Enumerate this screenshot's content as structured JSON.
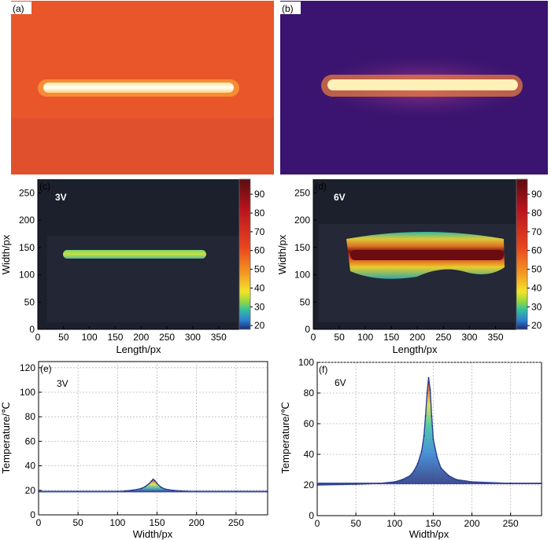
{
  "figure": {
    "panels": {
      "a": {
        "label": "(a)",
        "colormap": "orange-thermal"
      },
      "b": {
        "label": "(b)",
        "colormap": "inferno-thermal"
      },
      "c": {
        "label": "(c)",
        "voltage": "3V"
      },
      "d": {
        "label": "(d)",
        "voltage": "6V"
      },
      "e": {
        "label": "(e)",
        "voltage": "3V"
      },
      "f": {
        "label": "(f)",
        "voltage": "6V"
      }
    },
    "colors": {
      "background": "#ffffff",
      "thermal_a_background": "#e8562a",
      "thermal_b_background": "#3a1470",
      "heatmap_background": "#1c1f2c",
      "grid": "#b8b8b8",
      "colorbar": [
        "#1e2a78",
        "#2b7fd0",
        "#33c0a0",
        "#9bd83a",
        "#f2e52a",
        "#f59a22",
        "#e8441e",
        "#b8141e",
        "#5a0c10"
      ]
    }
  },
  "chart_data": [
    {
      "type": "heatmap",
      "panel": "c",
      "annotation": "3V",
      "xlabel": "Length/px",
      "ylabel": "Width/px",
      "xlim": [
        0,
        390
      ],
      "ylim": [
        0,
        275
      ],
      "xticks": [
        0,
        50,
        100,
        150,
        200,
        250,
        300,
        350
      ],
      "yticks": [
        0,
        50,
        100,
        150,
        200,
        250
      ],
      "colorbar": {
        "range": [
          18,
          98
        ],
        "ticks": [
          20,
          30,
          40,
          50,
          60,
          70,
          80,
          90
        ]
      },
      "hot_region": {
        "x_range": [
          50,
          320
        ],
        "width_center": 145,
        "width_span": [
          137,
          152
        ],
        "max_temperature": 40
      }
    },
    {
      "type": "heatmap",
      "panel": "d",
      "annotation": "6V",
      "xlabel": "Length/px",
      "ylabel": "Width/px",
      "xlim": [
        0,
        390
      ],
      "ylim": [
        0,
        275
      ],
      "xticks": [
        0,
        50,
        100,
        150,
        200,
        250,
        300,
        350
      ],
      "yticks": [
        0,
        50,
        100,
        150,
        200,
        250
      ],
      "colorbar": {
        "range": [
          18,
          98
        ],
        "ticks": [
          20,
          30,
          40,
          50,
          60,
          70,
          80,
          90
        ]
      },
      "hot_region": {
        "x_range": [
          65,
          355
        ],
        "width_center": 140,
        "width_span": [
          85,
          165
        ],
        "max_temperature": 95
      }
    },
    {
      "type": "line",
      "panel": "e",
      "annotation": "3V",
      "xlabel": "Width/px",
      "ylabel": "Temperature/℃",
      "xlim": [
        0,
        290
      ],
      "ylim": [
        0,
        125
      ],
      "xticks": [
        0,
        50,
        100,
        150,
        200,
        250
      ],
      "yticks": [
        0,
        20,
        40,
        60,
        80,
        100,
        120
      ],
      "baseline": 19,
      "x": [
        0,
        50,
        100,
        110,
        120,
        130,
        135,
        140,
        143,
        145,
        147,
        150,
        155,
        160,
        170,
        180,
        200,
        250,
        290
      ],
      "y": [
        19,
        19,
        19,
        19.5,
        20.2,
        21.5,
        23,
        25.5,
        27.5,
        29,
        28,
        25.5,
        22.5,
        21,
        20,
        19.5,
        19,
        19,
        19
      ]
    },
    {
      "type": "line",
      "panel": "f",
      "annotation": "6V",
      "xlabel": "Width/px",
      "ylabel": "Temperature/℃",
      "xlim": [
        0,
        290
      ],
      "ylim": [
        0,
        100
      ],
      "xticks": [
        0,
        50,
        100,
        150,
        200,
        250
      ],
      "yticks": [
        0,
        20,
        40,
        60,
        80,
        100
      ],
      "baseline": 21,
      "x": [
        0,
        50,
        80,
        100,
        110,
        120,
        125,
        130,
        135,
        138,
        140,
        142,
        144,
        146,
        148,
        150,
        155,
        160,
        170,
        180,
        200,
        250,
        290
      ],
      "y": [
        20,
        20.5,
        21,
        22,
        23.5,
        26,
        29,
        34,
        42,
        52,
        65,
        80,
        90,
        82,
        65,
        50,
        38,
        31,
        26,
        23.5,
        22,
        21,
        21
      ]
    }
  ]
}
